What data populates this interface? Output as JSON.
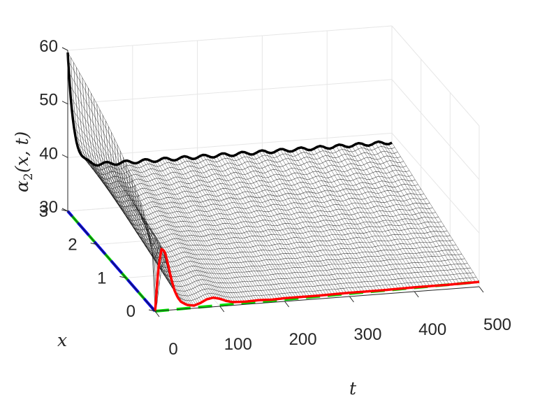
{
  "chart_data": {
    "type": "surface3d",
    "xlabel": "t",
    "ylabel": "x",
    "zlabel_main": "α",
    "zlabel_sub": "2",
    "zlabel_args": "(x, t)",
    "t_range": [
      0,
      500
    ],
    "x_range": [
      0,
      3
    ],
    "z_range": [
      30,
      60
    ],
    "t_ticks": [
      "0",
      "100",
      "200",
      "300",
      "400",
      "500"
    ],
    "x_ticks": [
      "0",
      "1",
      "2",
      "3"
    ],
    "z_ticks": [
      "30",
      "40",
      "50",
      "60"
    ],
    "grid": true,
    "surface_color": "#111111",
    "series": [
      {
        "color": "#ff0000",
        "style": "solid",
        "t": [
          0,
          5,
          10,
          15,
          20,
          25,
          30,
          35,
          40,
          45,
          50,
          60,
          70,
          80,
          90,
          100,
          110,
          120,
          140,
          160,
          180,
          200,
          250,
          300,
          350,
          400,
          450,
          500
        ],
        "z": [
          30,
          38,
          41.5,
          41,
          38.5,
          35.8,
          33.6,
          32.2,
          31.4,
          31.0,
          30.7,
          30.5,
          30.9,
          31.5,
          31.7,
          31.4,
          30.9,
          30.6,
          30.5,
          30.6,
          30.5,
          30.6,
          30.6,
          30.7,
          30.7,
          30.8,
          30.8,
          30.9
        ]
      },
      {
        "color": "#00dd00",
        "style": "dashed",
        "t": [
          0,
          500
        ],
        "z": [
          30,
          30.9
        ]
      }
    ],
    "initial_profile": {
      "color": "#0000ee",
      "style": "dashed",
      "x": [
        0,
        3
      ],
      "z": [
        30,
        30
      ]
    }
  }
}
